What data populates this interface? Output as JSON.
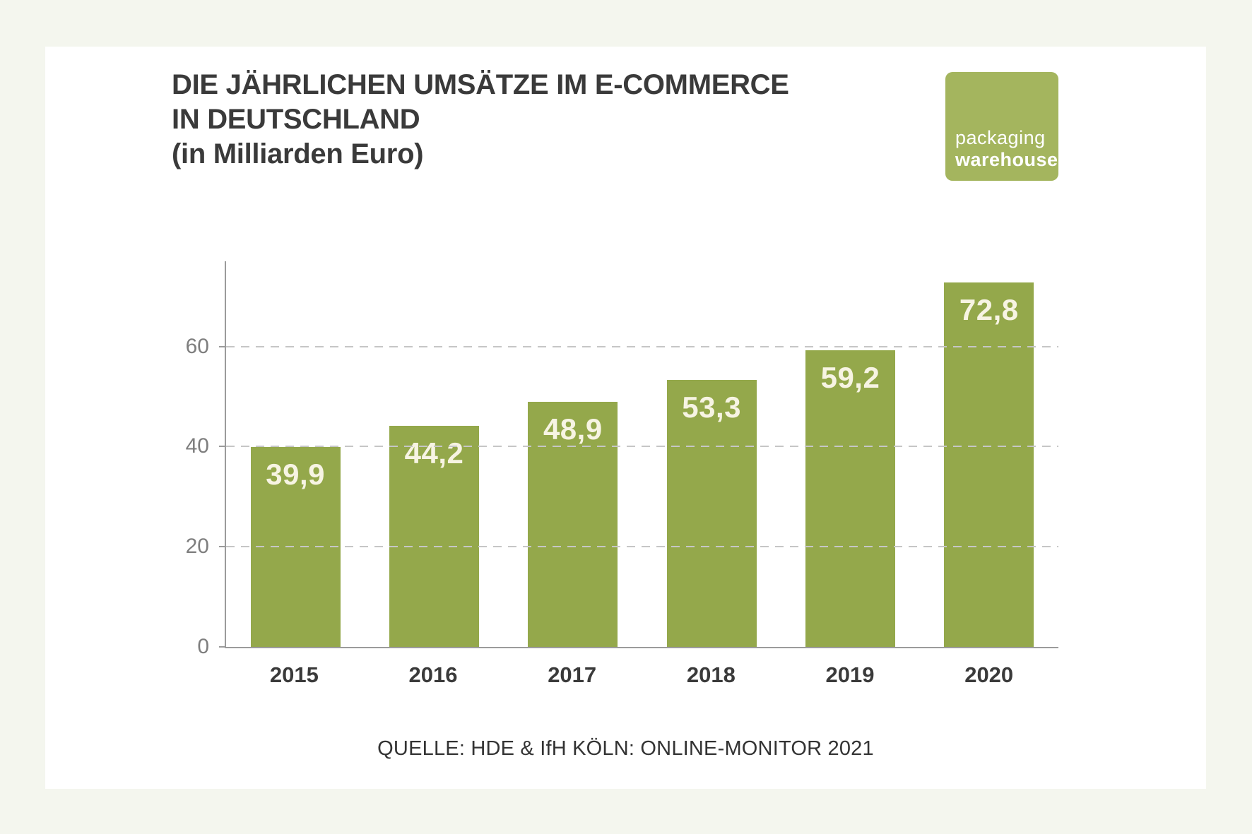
{
  "page": {
    "background_color": "#f4f6ee",
    "card_color": "#ffffff"
  },
  "header": {
    "title": "DIE JÄHRLICHEN UMSÄTZE IM E-COMMERCE\nIN DEUTSCHLAND\n(in Milliarden Euro)"
  },
  "logo": {
    "line1": "packaging",
    "line2": "warehouse",
    "background": "#a4b55e",
    "text_color": "#ffffff"
  },
  "chart_data": {
    "type": "bar",
    "title": "Die jährlichen Umsätze im E-Commerce in Deutschland (in Milliarden Euro)",
    "categories": [
      "2015",
      "2016",
      "2017",
      "2018",
      "2019",
      "2020"
    ],
    "values": [
      39.9,
      44.2,
      48.9,
      53.3,
      59.2,
      72.8
    ],
    "value_labels": [
      "39,9",
      "44,2",
      "48,9",
      "53,3",
      "59,2",
      "72,8"
    ],
    "xlabel": "",
    "ylabel": "",
    "ylim": [
      0,
      77
    ],
    "yticks": [
      0,
      20,
      40,
      60
    ],
    "grid": "horizontal dashed",
    "legend": "none",
    "bar_color": "#94a84b",
    "value_label_color": "#f7f4e3",
    "axis_color": "#9b9b9b",
    "gridline_color": "#c6c6c6",
    "tick_label_color": "#7e7e7e"
  },
  "footer": {
    "source": "QUELLE: HDE & IfH KÖLN: ONLINE-MONITOR 2021"
  }
}
